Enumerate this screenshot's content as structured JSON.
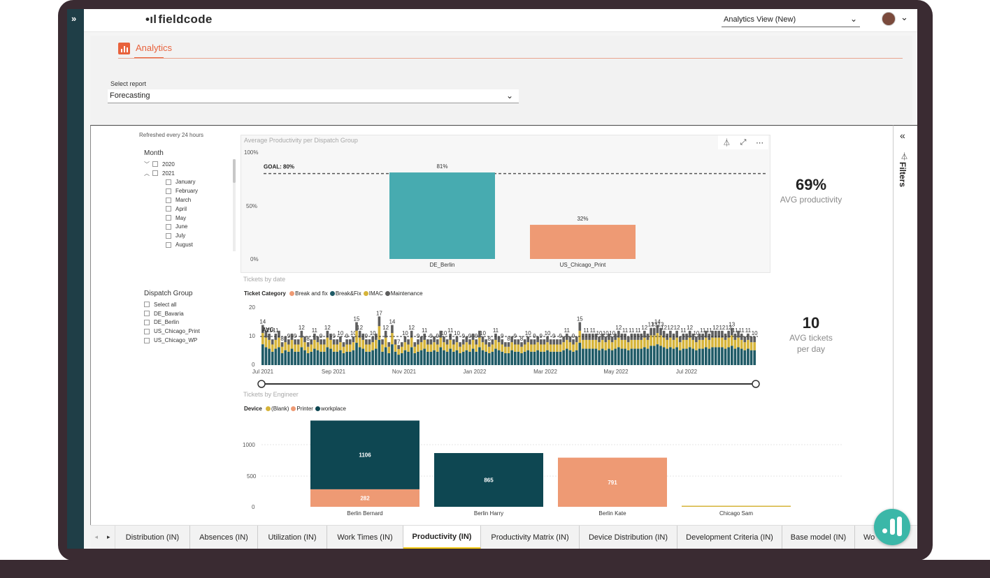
{
  "app": {
    "logo": "fieldcode",
    "view_select": "Analytics View (New)",
    "analytics_tab": "Analytics"
  },
  "report_select": {
    "label": "Select report",
    "value": "Forecasting"
  },
  "filters": {
    "label": "Filters"
  },
  "refresh_note": "Refreshed every 24 hours",
  "month_slicer": {
    "title": "Month",
    "years": [
      "2020",
      "2021"
    ],
    "months": [
      "January",
      "February",
      "March",
      "April",
      "May",
      "June",
      "July",
      "August"
    ]
  },
  "dispatch_slicer": {
    "title": "Dispatch Group",
    "items": [
      "Select all",
      "DE_Bavaria",
      "DE_Berlin",
      "US_Chicago_Print",
      "US_Chicago_WP"
    ]
  },
  "productivity_chart": {
    "title": "Average Productivity per Dispatch Group",
    "goal_label": "GOAL: 80%",
    "y_ticks": [
      "100%",
      "50%",
      "0%"
    ]
  },
  "kpi_productivity": {
    "value": "69%",
    "label": "AVG productivity"
  },
  "tickets_chart": {
    "title": "Tickets by date",
    "legend_title": "Ticket Category",
    "avg_label": "AVG",
    "y_ticks": [
      "20",
      "10",
      "0"
    ],
    "x_ticks": [
      "Jul 2021",
      "Sep 2021",
      "Nov 2021",
      "Jan 2022",
      "Mar 2022",
      "May 2022",
      "Jul 2022"
    ]
  },
  "kpi_tickets": {
    "value": "10",
    "label_line1": "AVG tickets",
    "label_line2": "per day"
  },
  "engineer_chart": {
    "title": "Tickets by Engineer",
    "legend_title": "Device",
    "y_ticks": [
      "1000",
      "500",
      "0"
    ]
  },
  "chart_data": [
    {
      "type": "bar",
      "title": "Average Productivity per Dispatch Group",
      "categories": [
        "DE_Berlin",
        "US_Chicago_Print"
      ],
      "values": [
        81,
        32
      ],
      "value_labels": [
        "81%",
        "32%"
      ],
      "goal": 80,
      "ylim": [
        0,
        100
      ],
      "colors": [
        "#47abb0",
        "#ee9a74"
      ]
    },
    {
      "type": "bar",
      "title": "Tickets by date",
      "stacked": true,
      "ylim": [
        0,
        20
      ],
      "avg": 10,
      "series": [
        {
          "name": "Break and fix",
          "color": "#ee9a74"
        },
        {
          "name": "Break&Fix",
          "color": "#1f5a66"
        },
        {
          "name": "IMAC",
          "color": "#d6b43a"
        },
        {
          "name": "Maintenance",
          "color": "#5e5e5e"
        }
      ],
      "x": [
        "Jul 2021",
        "Sep 2021",
        "Nov 2021",
        "Jan 2022",
        "Mar 2022",
        "May 2022",
        "Jul 2022"
      ],
      "daily_totals": [
        14,
        12,
        11,
        9,
        11,
        12,
        8,
        10,
        9,
        11,
        9,
        9,
        12,
        10,
        8,
        9,
        11,
        10,
        9,
        9,
        12,
        11,
        9,
        9,
        10,
        8,
        9,
        9,
        10,
        15,
        12,
        11,
        9,
        9,
        10,
        11,
        17,
        9,
        12,
        8,
        14,
        9,
        7,
        8,
        10,
        9,
        12,
        8,
        9,
        10,
        11,
        9,
        9,
        10,
        9,
        12,
        10,
        9,
        11,
        9,
        10,
        8,
        9,
        10,
        9,
        11,
        9,
        12,
        10,
        9,
        8,
        9,
        11,
        10,
        9,
        8,
        8,
        10,
        9,
        9,
        8,
        9,
        10,
        9,
        9,
        10,
        9,
        9,
        10,
        9,
        9,
        9,
        9,
        10,
        11,
        10,
        9,
        10,
        15,
        11,
        11,
        11,
        11,
        11,
        10,
        11,
        10,
        11,
        10,
        11,
        12,
        11,
        11,
        10,
        11,
        11,
        11,
        11,
        12,
        11,
        13,
        13,
        14,
        13,
        12,
        11,
        12,
        11,
        12,
        10,
        11,
        11,
        12,
        11,
        10,
        11,
        11,
        12,
        11,
        12,
        12,
        12,
        12,
        11,
        12,
        13,
        11,
        12,
        11,
        10,
        11,
        10,
        10
      ]
    },
    {
      "type": "bar",
      "title": "Tickets by Engineer",
      "stacked": true,
      "categories": [
        "Berlin Bernard",
        "Berlin Harry",
        "Berlin Kate",
        "Chicago Sam"
      ],
      "ylim": [
        0,
        1400
      ],
      "series": [
        {
          "name": "(Blank)",
          "values": [
            0,
            0,
            0,
            10
          ],
          "color": "#d6b43a"
        },
        {
          "name": "Printer",
          "values": [
            282,
            0,
            791,
            0
          ],
          "color": "#ee9a74"
        },
        {
          "name": "workplace",
          "values": [
            1106,
            865,
            0,
            0
          ],
          "color": "#0e4752"
        }
      ]
    }
  ],
  "page_tabs": [
    "Distribution (IN)",
    "Absences (IN)",
    "Utilization (IN)",
    "Work Times (IN)",
    "Productivity (IN)",
    "Productivity Matrix (IN)",
    "Device Distribution (IN)",
    "Development Criteria (IN)",
    "Base model (IN)",
    "Wo"
  ],
  "active_tab": "Productivity (IN)"
}
